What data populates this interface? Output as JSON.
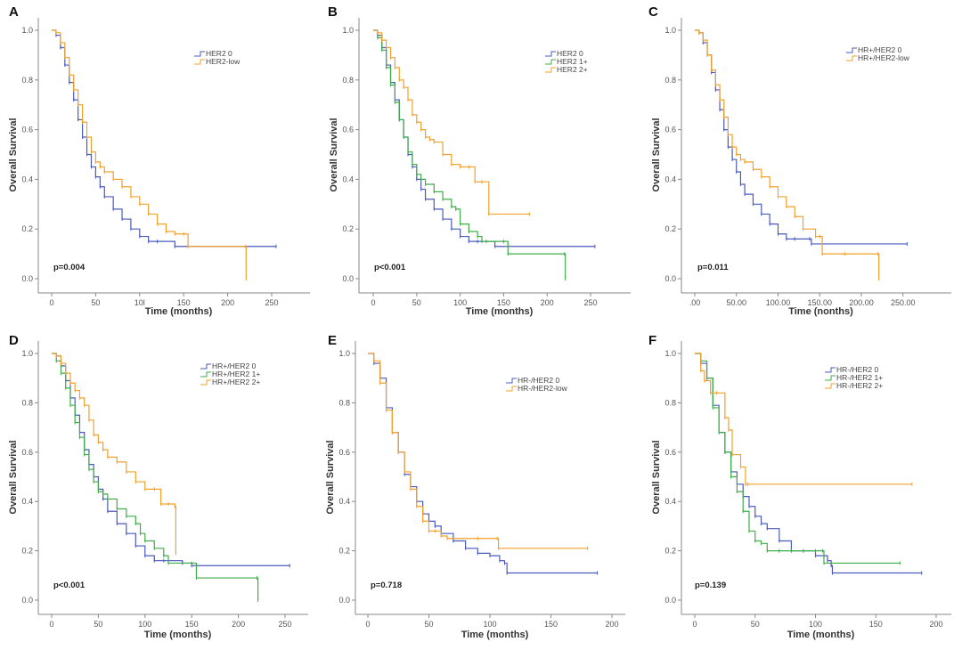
{
  "figure": {
    "colors": {
      "blue": "#4a5bbd",
      "green": "#3fae49",
      "orange": "#f2a12c"
    }
  },
  "chart_data": [
    {
      "panel": "A",
      "type": "line",
      "subtype": "kaplan-meier",
      "xlabel": "Time (months)",
      "ylabel": "Overall Survival",
      "xticks": [
        "0",
        "50",
        "10l",
        "150",
        "200",
        "250"
      ],
      "xtick_values": [
        0,
        50,
        100,
        150,
        200,
        250
      ],
      "yticks": [
        "0.0",
        "0.2",
        "0.4",
        "0.6",
        "0.8",
        "1.0"
      ],
      "xlim": [
        0,
        290
      ],
      "ylim": [
        0,
        1.0
      ],
      "pvalue": "p=0.004",
      "legend": "top-right",
      "series": [
        {
          "name": "HER2 0",
          "color": "blue",
          "x": [
            0,
            5,
            10,
            15,
            20,
            25,
            30,
            35,
            40,
            45,
            50,
            55,
            60,
            70,
            80,
            90,
            100,
            110,
            120,
            140,
            255
          ],
          "y": [
            1.0,
            0.98,
            0.93,
            0.86,
            0.79,
            0.72,
            0.64,
            0.57,
            0.5,
            0.45,
            0.41,
            0.37,
            0.33,
            0.28,
            0.24,
            0.2,
            0.17,
            0.15,
            0.15,
            0.13,
            0.13
          ]
        },
        {
          "name": "HER2-low",
          "color": "orange",
          "x": [
            0,
            5,
            10,
            15,
            20,
            25,
            30,
            35,
            40,
            45,
            50,
            55,
            60,
            70,
            80,
            90,
            100,
            110,
            120,
            130,
            140,
            150,
            155,
            220,
            221
          ],
          "y": [
            1.0,
            0.99,
            0.95,
            0.89,
            0.82,
            0.76,
            0.7,
            0.63,
            0.57,
            0.51,
            0.47,
            0.45,
            0.43,
            0.4,
            0.37,
            0.33,
            0.3,
            0.26,
            0.22,
            0.19,
            0.18,
            0.18,
            0.13,
            0.13,
            0.0
          ]
        }
      ]
    },
    {
      "panel": "B",
      "type": "line",
      "subtype": "kaplan-meier",
      "xlabel": "Time (months)",
      "ylabel": "Overall Survival",
      "xticks": [
        "0",
        "50",
        "100",
        "150",
        "200",
        "250"
      ],
      "xtick_values": [
        0,
        50,
        100,
        150,
        200,
        250
      ],
      "yticks": [
        "0.0",
        "0.2",
        "0.4",
        "0.6",
        "0.8",
        "1.0"
      ],
      "xlim": [
        0,
        290
      ],
      "ylim": [
        0,
        1.0
      ],
      "pvalue": "p<0.001",
      "legend": "top-right",
      "series": [
        {
          "name": "HER2 0",
          "color": "blue",
          "x": [
            0,
            5,
            10,
            15,
            20,
            25,
            30,
            35,
            40,
            45,
            50,
            55,
            60,
            70,
            80,
            90,
            100,
            110,
            120,
            140,
            255
          ],
          "y": [
            1.0,
            0.98,
            0.93,
            0.86,
            0.79,
            0.72,
            0.64,
            0.57,
            0.5,
            0.45,
            0.4,
            0.36,
            0.32,
            0.28,
            0.24,
            0.2,
            0.17,
            0.15,
            0.15,
            0.13,
            0.13
          ]
        },
        {
          "name": "HER2 1+",
          "color": "green",
          "x": [
            0,
            5,
            10,
            15,
            20,
            25,
            30,
            35,
            40,
            45,
            50,
            55,
            60,
            70,
            80,
            90,
            95,
            100,
            110,
            120,
            125,
            130,
            150,
            155,
            220,
            221
          ],
          "y": [
            1.0,
            0.97,
            0.92,
            0.85,
            0.78,
            0.71,
            0.64,
            0.57,
            0.51,
            0.46,
            0.42,
            0.4,
            0.38,
            0.35,
            0.32,
            0.29,
            0.28,
            0.22,
            0.19,
            0.17,
            0.15,
            0.15,
            0.15,
            0.1,
            0.1,
            0.0
          ]
        },
        {
          "name": "HER2 2+",
          "color": "orange",
          "x": [
            0,
            5,
            10,
            15,
            20,
            25,
            30,
            35,
            40,
            45,
            50,
            55,
            60,
            65,
            70,
            80,
            90,
            100,
            110,
            117,
            125,
            133,
            180
          ],
          "y": [
            1.0,
            0.99,
            0.96,
            0.93,
            0.89,
            0.85,
            0.8,
            0.77,
            0.72,
            0.66,
            0.63,
            0.6,
            0.57,
            0.56,
            0.55,
            0.5,
            0.46,
            0.45,
            0.45,
            0.39,
            0.39,
            0.26,
            0.26
          ]
        }
      ]
    },
    {
      "panel": "C",
      "type": "line",
      "subtype": "kaplan-meier",
      "xlabel": "Time (nonths)",
      "ylabel": "Overall Survival",
      "xticks": [
        ".00",
        "50.00",
        "100.00",
        "150.00",
        "200.00",
        "250.00"
      ],
      "xtick_values": [
        0,
        50,
        100,
        150,
        200,
        250
      ],
      "yticks": [
        "0.0",
        "0.2",
        "0.4",
        "0.6",
        "0.8",
        "1.0"
      ],
      "xlim": [
        0,
        260
      ],
      "ylim": [
        0,
        1.0
      ],
      "pvalue": "p=0.011",
      "legend": "top-right",
      "series": [
        {
          "name": "HR+/HER2 0",
          "color": "blue",
          "x": [
            0,
            5,
            10,
            15,
            20,
            25,
            30,
            35,
            40,
            45,
            50,
            55,
            60,
            70,
            80,
            90,
            100,
            110,
            120,
            138,
            140,
            255
          ],
          "y": [
            1.0,
            0.99,
            0.95,
            0.9,
            0.83,
            0.76,
            0.68,
            0.6,
            0.53,
            0.48,
            0.43,
            0.38,
            0.34,
            0.3,
            0.26,
            0.22,
            0.18,
            0.16,
            0.16,
            0.16,
            0.14,
            0.14
          ]
        },
        {
          "name": "HR+/HER2-low",
          "color": "orange",
          "x": [
            0,
            5,
            10,
            15,
            20,
            25,
            30,
            35,
            40,
            45,
            50,
            55,
            60,
            70,
            80,
            90,
            100,
            110,
            120,
            130,
            145,
            150,
            153,
            180,
            220,
            221
          ],
          "y": [
            1.0,
            0.99,
            0.96,
            0.9,
            0.84,
            0.78,
            0.72,
            0.65,
            0.58,
            0.53,
            0.5,
            0.48,
            0.47,
            0.44,
            0.41,
            0.37,
            0.33,
            0.29,
            0.25,
            0.2,
            0.17,
            0.17,
            0.1,
            0.1,
            0.1,
            0.0
          ]
        }
      ]
    },
    {
      "panel": "D",
      "type": "line",
      "subtype": "kaplan-meier",
      "xlabel": "Time (months)",
      "ylabel": "Overall Survival",
      "xticks": [
        "0",
        "50",
        "100",
        "150",
        "200",
        "250"
      ],
      "xtick_values": [
        0,
        50,
        100,
        150,
        200,
        250
      ],
      "yticks": [
        "0.0",
        "0.2",
        "0.4",
        "0.6",
        "0.8",
        "1.0"
      ],
      "xlim": [
        0,
        275
      ],
      "ylim": [
        0,
        1.0
      ],
      "pvalue": "p<0.001",
      "legend": "top-right",
      "series": [
        {
          "name": "HR+/HER2 0",
          "color": "blue",
          "x": [
            0,
            5,
            10,
            15,
            20,
            25,
            30,
            35,
            40,
            45,
            50,
            55,
            60,
            70,
            80,
            90,
            100,
            110,
            120,
            140,
            150,
            255
          ],
          "y": [
            1.0,
            0.99,
            0.95,
            0.89,
            0.82,
            0.75,
            0.68,
            0.61,
            0.55,
            0.5,
            0.45,
            0.41,
            0.36,
            0.31,
            0.27,
            0.22,
            0.18,
            0.16,
            0.16,
            0.15,
            0.14,
            0.14
          ]
        },
        {
          "name": "HR+/HER2 1+",
          "color": "green",
          "x": [
            0,
            5,
            10,
            15,
            20,
            25,
            30,
            35,
            40,
            45,
            50,
            55,
            60,
            70,
            80,
            90,
            95,
            100,
            110,
            120,
            125,
            150,
            155,
            220,
            221
          ],
          "y": [
            1.0,
            0.97,
            0.92,
            0.86,
            0.79,
            0.72,
            0.66,
            0.59,
            0.53,
            0.48,
            0.44,
            0.43,
            0.41,
            0.37,
            0.34,
            0.31,
            0.27,
            0.24,
            0.21,
            0.18,
            0.15,
            0.15,
            0.09,
            0.09,
            0.0
          ]
        },
        {
          "name": "HR+/HER2 2+",
          "color": "orange",
          "x": [
            0,
            5,
            10,
            15,
            20,
            25,
            30,
            35,
            40,
            45,
            50,
            55,
            60,
            70,
            80,
            90,
            100,
            110,
            117,
            125,
            132,
            133
          ],
          "y": [
            1.0,
            0.99,
            0.96,
            0.92,
            0.88,
            0.85,
            0.82,
            0.79,
            0.73,
            0.67,
            0.64,
            0.61,
            0.58,
            0.56,
            0.52,
            0.48,
            0.45,
            0.45,
            0.39,
            0.39,
            0.38,
            0.19
          ]
        }
      ]
    },
    {
      "panel": "E",
      "type": "line",
      "subtype": "kaplan-meier",
      "xlabel": "Time (months)",
      "ylabel": "Overall Survival",
      "xticks": [
        "0",
        "50",
        "100",
        "150",
        "200"
      ],
      "xtick_values": [
        0,
        50,
        100,
        150,
        200
      ],
      "yticks": [
        "0.0",
        "0.2",
        "0.4",
        "0.6",
        "0.8",
        "1.0"
      ],
      "xlim": [
        0,
        210
      ],
      "ylim": [
        0,
        1.0
      ],
      "pvalue": "p=0.718",
      "legend": "top-right",
      "series": [
        {
          "name": "HR-/HER2 0",
          "color": "blue",
          "x": [
            0,
            5,
            10,
            15,
            20,
            25,
            30,
            35,
            40,
            45,
            50,
            55,
            60,
            70,
            80,
            90,
            100,
            108,
            112,
            114,
            188
          ],
          "y": [
            1.0,
            0.96,
            0.9,
            0.78,
            0.68,
            0.6,
            0.51,
            0.46,
            0.4,
            0.35,
            0.32,
            0.3,
            0.27,
            0.24,
            0.21,
            0.19,
            0.18,
            0.16,
            0.15,
            0.11,
            0.11
          ]
        },
        {
          "name": "HR-/HER2-low",
          "color": "orange",
          "x": [
            0,
            5,
            10,
            15,
            20,
            25,
            30,
            35,
            40,
            45,
            50,
            55,
            60,
            65,
            90,
            106,
            107,
            180
          ],
          "y": [
            1.0,
            0.97,
            0.88,
            0.77,
            0.68,
            0.6,
            0.52,
            0.45,
            0.38,
            0.32,
            0.28,
            0.28,
            0.26,
            0.25,
            0.25,
            0.25,
            0.21,
            0.21
          ]
        }
      ]
    },
    {
      "panel": "F",
      "type": "line",
      "subtype": "kaplan-meier",
      "xlabel": "Time (months)",
      "ylabel": "Overall Survival",
      "xticks": [
        "0",
        "50",
        "100",
        "150",
        "200"
      ],
      "xtick_values": [
        0,
        50,
        100,
        150,
        200
      ],
      "yticks": [
        "0.0",
        "0.2",
        "0.4",
        "0.6",
        "0.8",
        "1.0"
      ],
      "xlim": [
        0,
        210
      ],
      "ylim": [
        0,
        1.0
      ],
      "pvalue": "p=0.139",
      "legend": "top-right",
      "series": [
        {
          "name": "HR-/HER2 0",
          "color": "blue",
          "x": [
            0,
            5,
            10,
            15,
            20,
            25,
            30,
            35,
            40,
            45,
            50,
            55,
            60,
            70,
            80,
            90,
            100,
            110,
            113,
            114,
            188
          ],
          "y": [
            1.0,
            0.96,
            0.9,
            0.79,
            0.68,
            0.6,
            0.52,
            0.47,
            0.42,
            0.38,
            0.34,
            0.31,
            0.29,
            0.24,
            0.2,
            0.2,
            0.18,
            0.16,
            0.14,
            0.11,
            0.11
          ]
        },
        {
          "name": "HR-/HER2 1+",
          "color": "green",
          "x": [
            0,
            5,
            10,
            15,
            20,
            25,
            30,
            35,
            40,
            45,
            50,
            55,
            60,
            70,
            80,
            90,
            100,
            106,
            107,
            170
          ],
          "y": [
            1.0,
            0.97,
            0.9,
            0.78,
            0.68,
            0.6,
            0.5,
            0.44,
            0.36,
            0.28,
            0.24,
            0.23,
            0.2,
            0.2,
            0.2,
            0.2,
            0.2,
            0.2,
            0.15,
            0.15
          ]
        },
        {
          "name": "HR-/HER2 2+",
          "color": "orange",
          "x": [
            0,
            5,
            8,
            13,
            18,
            25,
            28,
            31,
            38,
            42,
            44,
            180
          ],
          "y": [
            1.0,
            0.93,
            0.89,
            0.84,
            0.84,
            0.74,
            0.69,
            0.59,
            0.54,
            0.47,
            0.47,
            0.47
          ]
        }
      ]
    }
  ]
}
